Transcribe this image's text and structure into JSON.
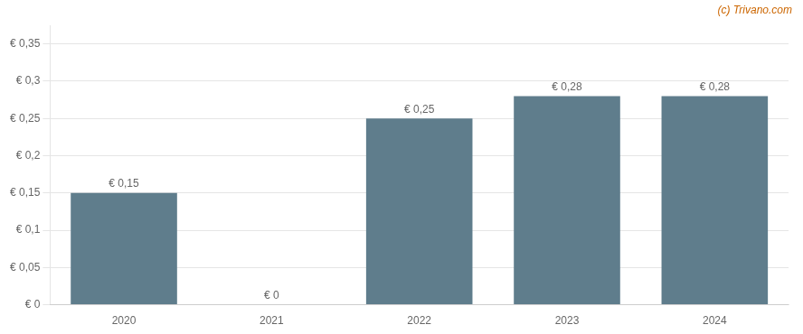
{
  "chart_data": {
    "type": "bar",
    "categories": [
      "2020",
      "2021",
      "2022",
      "2023",
      "2024"
    ],
    "values": [
      0.15,
      0.0,
      0.25,
      0.28,
      0.28
    ],
    "value_labels": [
      "€ 0,15",
      "€ 0",
      "€ 0,25",
      "€ 0,28",
      "€ 0,28"
    ],
    "data_labels": true,
    "color": "#5f7d8c",
    "ylim": [
      0,
      0.375
    ],
    "yticks": [
      {
        "value": 0.0,
        "label": "€ 0"
      },
      {
        "value": 0.05,
        "label": "€ 0,05"
      },
      {
        "value": 0.1,
        "label": "€ 0,1"
      },
      {
        "value": 0.15,
        "label": "€ 0,15"
      },
      {
        "value": 0.2,
        "label": "€ 0,2"
      },
      {
        "value": 0.25,
        "label": "€ 0,25"
      },
      {
        "value": 0.3,
        "label": "€ 0,3"
      },
      {
        "value": 0.35,
        "label": "€ 0,35"
      }
    ],
    "grid": true,
    "annotations": [
      {
        "text": "(c) Trivano.com",
        "color": "#cc6600"
      }
    ]
  }
}
